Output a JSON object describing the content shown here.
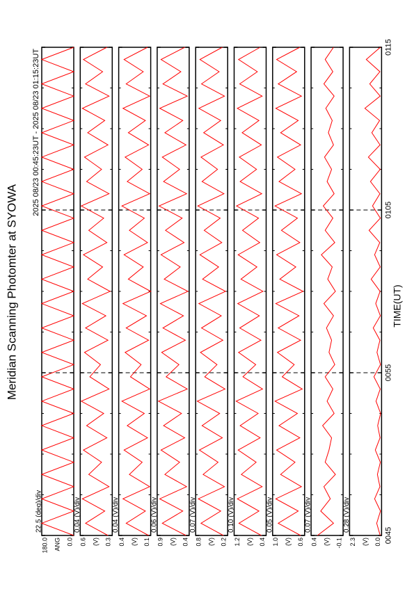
{
  "chart_data": {
    "type": "line",
    "title": "Meridian Scanning Photomter at SYOWA",
    "subtitle": "2025 08/23 00:45:23UT - 2025 08/23 01:15:23UT",
    "xlabel": "TIME(UT)",
    "xlim": [
      0,
      30
    ],
    "xticks": [
      {
        "value": 0,
        "label": "0045"
      },
      {
        "value": 10,
        "label": "0055"
      },
      {
        "value": 20,
        "label": "0105"
      },
      {
        "value": 30,
        "label": "0115"
      }
    ],
    "xminorticks": [
      2.5,
      5,
      7.5,
      12.5,
      15,
      17.5,
      22.5,
      25,
      27.5
    ],
    "grid": true,
    "x": [
      0,
      0.75,
      1.5,
      2.25,
      3,
      3.75,
      4.5,
      5.25,
      6,
      6.75,
      7.5,
      8.25,
      9,
      9.75,
      10.5,
      11.25,
      12,
      12.75,
      13.5,
      14.25,
      15,
      15.75,
      16.5,
      17.25,
      18,
      18.75,
      19.5,
      20.25,
      21,
      21.75,
      22.5,
      23.25,
      24,
      24.75,
      25.5,
      26.25,
      27,
      27.75,
      28.5,
      29.25,
      30
    ],
    "panels": [
      {
        "scale_label": "22.5 (deg)/div",
        "ylabel": "ANG",
        "color": "#ff0000",
        "ylim": [
          0,
          180
        ],
        "yticks": [
          {
            "value": 0,
            "label": "0.0"
          },
          {
            "value": 180,
            "label": "180.0"
          }
        ],
        "values": [
          0,
          180,
          0,
          180,
          0,
          180,
          0,
          180,
          0,
          180,
          0,
          180,
          0,
          180,
          0,
          180,
          0,
          180,
          0,
          180,
          0,
          180,
          0,
          180,
          0,
          180,
          0,
          180,
          0,
          180,
          0,
          180,
          0,
          180,
          0,
          180,
          0,
          180,
          0,
          180,
          0
        ]
      },
      {
        "scale_label": "0.04 (V)/div",
        "ylabel": "(V)",
        "color": "#ff0000",
        "ylim": [
          0.3,
          0.6
        ],
        "yticks": [
          0.3,
          0.6
        ],
        "values": [
          0.34,
          0.55,
          0.37,
          0.58,
          0.33,
          0.52,
          0.4,
          0.57,
          0.35,
          0.54,
          0.38,
          0.59,
          0.33,
          0.51,
          0.41,
          0.56,
          0.34,
          0.55,
          0.36,
          0.58,
          0.32,
          0.53,
          0.39,
          0.57,
          0.35,
          0.52,
          0.38,
          0.59,
          0.33,
          0.54,
          0.4,
          0.56,
          0.34,
          0.53,
          0.37,
          0.58,
          0.33,
          0.55,
          0.39,
          0.57,
          0.35
        ]
      },
      {
        "scale_label": "0.04 (V)/div",
        "ylabel": "(V)",
        "color": "#ff0000",
        "ylim": [
          0.1,
          0.4
        ],
        "yticks": [
          0.1,
          0.4
        ],
        "values": [
          0.12,
          0.33,
          0.15,
          0.36,
          0.11,
          0.3,
          0.18,
          0.35,
          0.13,
          0.32,
          0.16,
          0.37,
          0.11,
          0.29,
          0.19,
          0.34,
          0.12,
          0.33,
          0.14,
          0.36,
          0.1,
          0.31,
          0.17,
          0.35,
          0.13,
          0.3,
          0.16,
          0.37,
          0.11,
          0.32,
          0.18,
          0.34,
          0.12,
          0.31,
          0.15,
          0.36,
          0.11,
          0.33,
          0.17,
          0.35,
          0.13
        ]
      },
      {
        "scale_label": "0.06 (V)/div",
        "ylabel": "(V)",
        "color": "#ff0000",
        "ylim": [
          0.4,
          0.9
        ],
        "yticks": [
          0.4,
          0.9
        ],
        "values": [
          0.45,
          0.82,
          0.5,
          0.86,
          0.44,
          0.78,
          0.55,
          0.84,
          0.47,
          0.8,
          0.52,
          0.88,
          0.43,
          0.76,
          0.56,
          0.83,
          0.46,
          0.81,
          0.49,
          0.85,
          0.42,
          0.79,
          0.54,
          0.84,
          0.48,
          0.77,
          0.51,
          0.87,
          0.44,
          0.8,
          0.55,
          0.82,
          0.45,
          0.78,
          0.5,
          0.86,
          0.43,
          0.81,
          0.53,
          0.84,
          0.47
        ]
      },
      {
        "scale_label": "0.07 (V)/div",
        "ylabel": "(V)",
        "color": "#ff0000",
        "ylim": [
          0.2,
          0.8
        ],
        "yticks": [
          0.2,
          0.8
        ],
        "values": [
          0.28,
          0.7,
          0.33,
          0.75,
          0.26,
          0.66,
          0.38,
          0.73,
          0.3,
          0.68,
          0.35,
          0.77,
          0.25,
          0.63,
          0.4,
          0.71,
          0.29,
          0.69,
          0.32,
          0.74,
          0.24,
          0.67,
          0.37,
          0.72,
          0.31,
          0.64,
          0.34,
          0.76,
          0.27,
          0.68,
          0.39,
          0.7,
          0.28,
          0.65,
          0.33,
          0.74,
          0.26,
          0.69,
          0.36,
          0.72,
          0.3
        ]
      },
      {
        "scale_label": "0.10 (V)/div",
        "ylabel": "(V)",
        "color": "#ff0000",
        "ylim": [
          0.4,
          1.2
        ],
        "yticks": [
          0.4,
          1.2
        ],
        "values": [
          0.52,
          1.08,
          0.58,
          1.12,
          0.5,
          1.02,
          0.65,
          1.1,
          0.55,
          1.05,
          0.6,
          1.15,
          0.49,
          0.98,
          0.66,
          1.09,
          0.53,
          1.06,
          0.57,
          1.11,
          0.48,
          1.03,
          0.63,
          1.1,
          0.56,
          0.99,
          0.59,
          1.14,
          0.51,
          1.05,
          0.64,
          1.07,
          0.52,
          1.0,
          0.58,
          1.12,
          0.5,
          1.06,
          0.62,
          1.09,
          0.55
        ]
      },
      {
        "scale_label": "0.05 (V)/div",
        "ylabel": "(V)",
        "color": "#ff0000",
        "ylim": [
          0.6,
          1.0
        ],
        "yticks": [
          0.6,
          {
            "value": 1,
            "label": "1.0"
          }
        ],
        "values": [
          0.65,
          0.93,
          0.68,
          0.96,
          0.64,
          0.9,
          0.72,
          0.95,
          0.66,
          0.92,
          0.69,
          0.97,
          0.63,
          0.88,
          0.73,
          0.94,
          0.65,
          0.93,
          0.67,
          0.96,
          0.62,
          0.91,
          0.71,
          0.95,
          0.66,
          0.89,
          0.69,
          0.97,
          0.64,
          0.92,
          0.72,
          0.94,
          0.65,
          0.9,
          0.68,
          0.96,
          0.64,
          0.93,
          0.7,
          0.95,
          0.66
        ]
      },
      {
        "scale_label": "0.07 (V)/div",
        "ylabel": "(V)",
        "color": "#ff0000",
        "ylim": [
          -0.1,
          0.4
        ],
        "yticks": [
          -0.1,
          0.4
        ],
        "values": [
          0.3,
          0.05,
          0.25,
          0.1,
          0.2,
          0.02,
          0.18,
          0.12,
          0.08,
          0.22,
          0.04,
          0.15,
          0.06,
          0.18,
          0.03,
          0.12,
          0.08,
          0.16,
          0.05,
          0.2,
          0.02,
          0.14,
          0.07,
          0.24,
          0.03,
          0.18,
          0.06,
          0.21,
          0.04,
          0.15,
          0.08,
          0.19,
          0.05,
          0.13,
          0.07,
          0.17,
          0.04,
          0.2,
          0.06,
          0.18,
          0.05
        ]
      },
      {
        "scale_label": "0.28 (V)/div",
        "ylabel": "(V)",
        "color": "#ff0000",
        "ylim": [
          0,
          2.3
        ],
        "yticks": [
          {
            "value": 0,
            "label": "0.0"
          },
          2.3
        ],
        "values": [
          0.1,
          0.35,
          0.08,
          0.5,
          0.12,
          0.3,
          0.09,
          0.45,
          0.11,
          0.28,
          0.07,
          0.4,
          0.1,
          0.55,
          0.08,
          0.33,
          0.12,
          0.6,
          0.09,
          0.42,
          0.11,
          0.75,
          0.1,
          0.5,
          0.13,
          0.9,
          0.09,
          0.65,
          0.12,
          0.8,
          0.1,
          0.95,
          0.11,
          0.7,
          0.14,
          1.2,
          0.1,
          0.85,
          0.12,
          1.1,
          0.09
        ]
      }
    ]
  }
}
